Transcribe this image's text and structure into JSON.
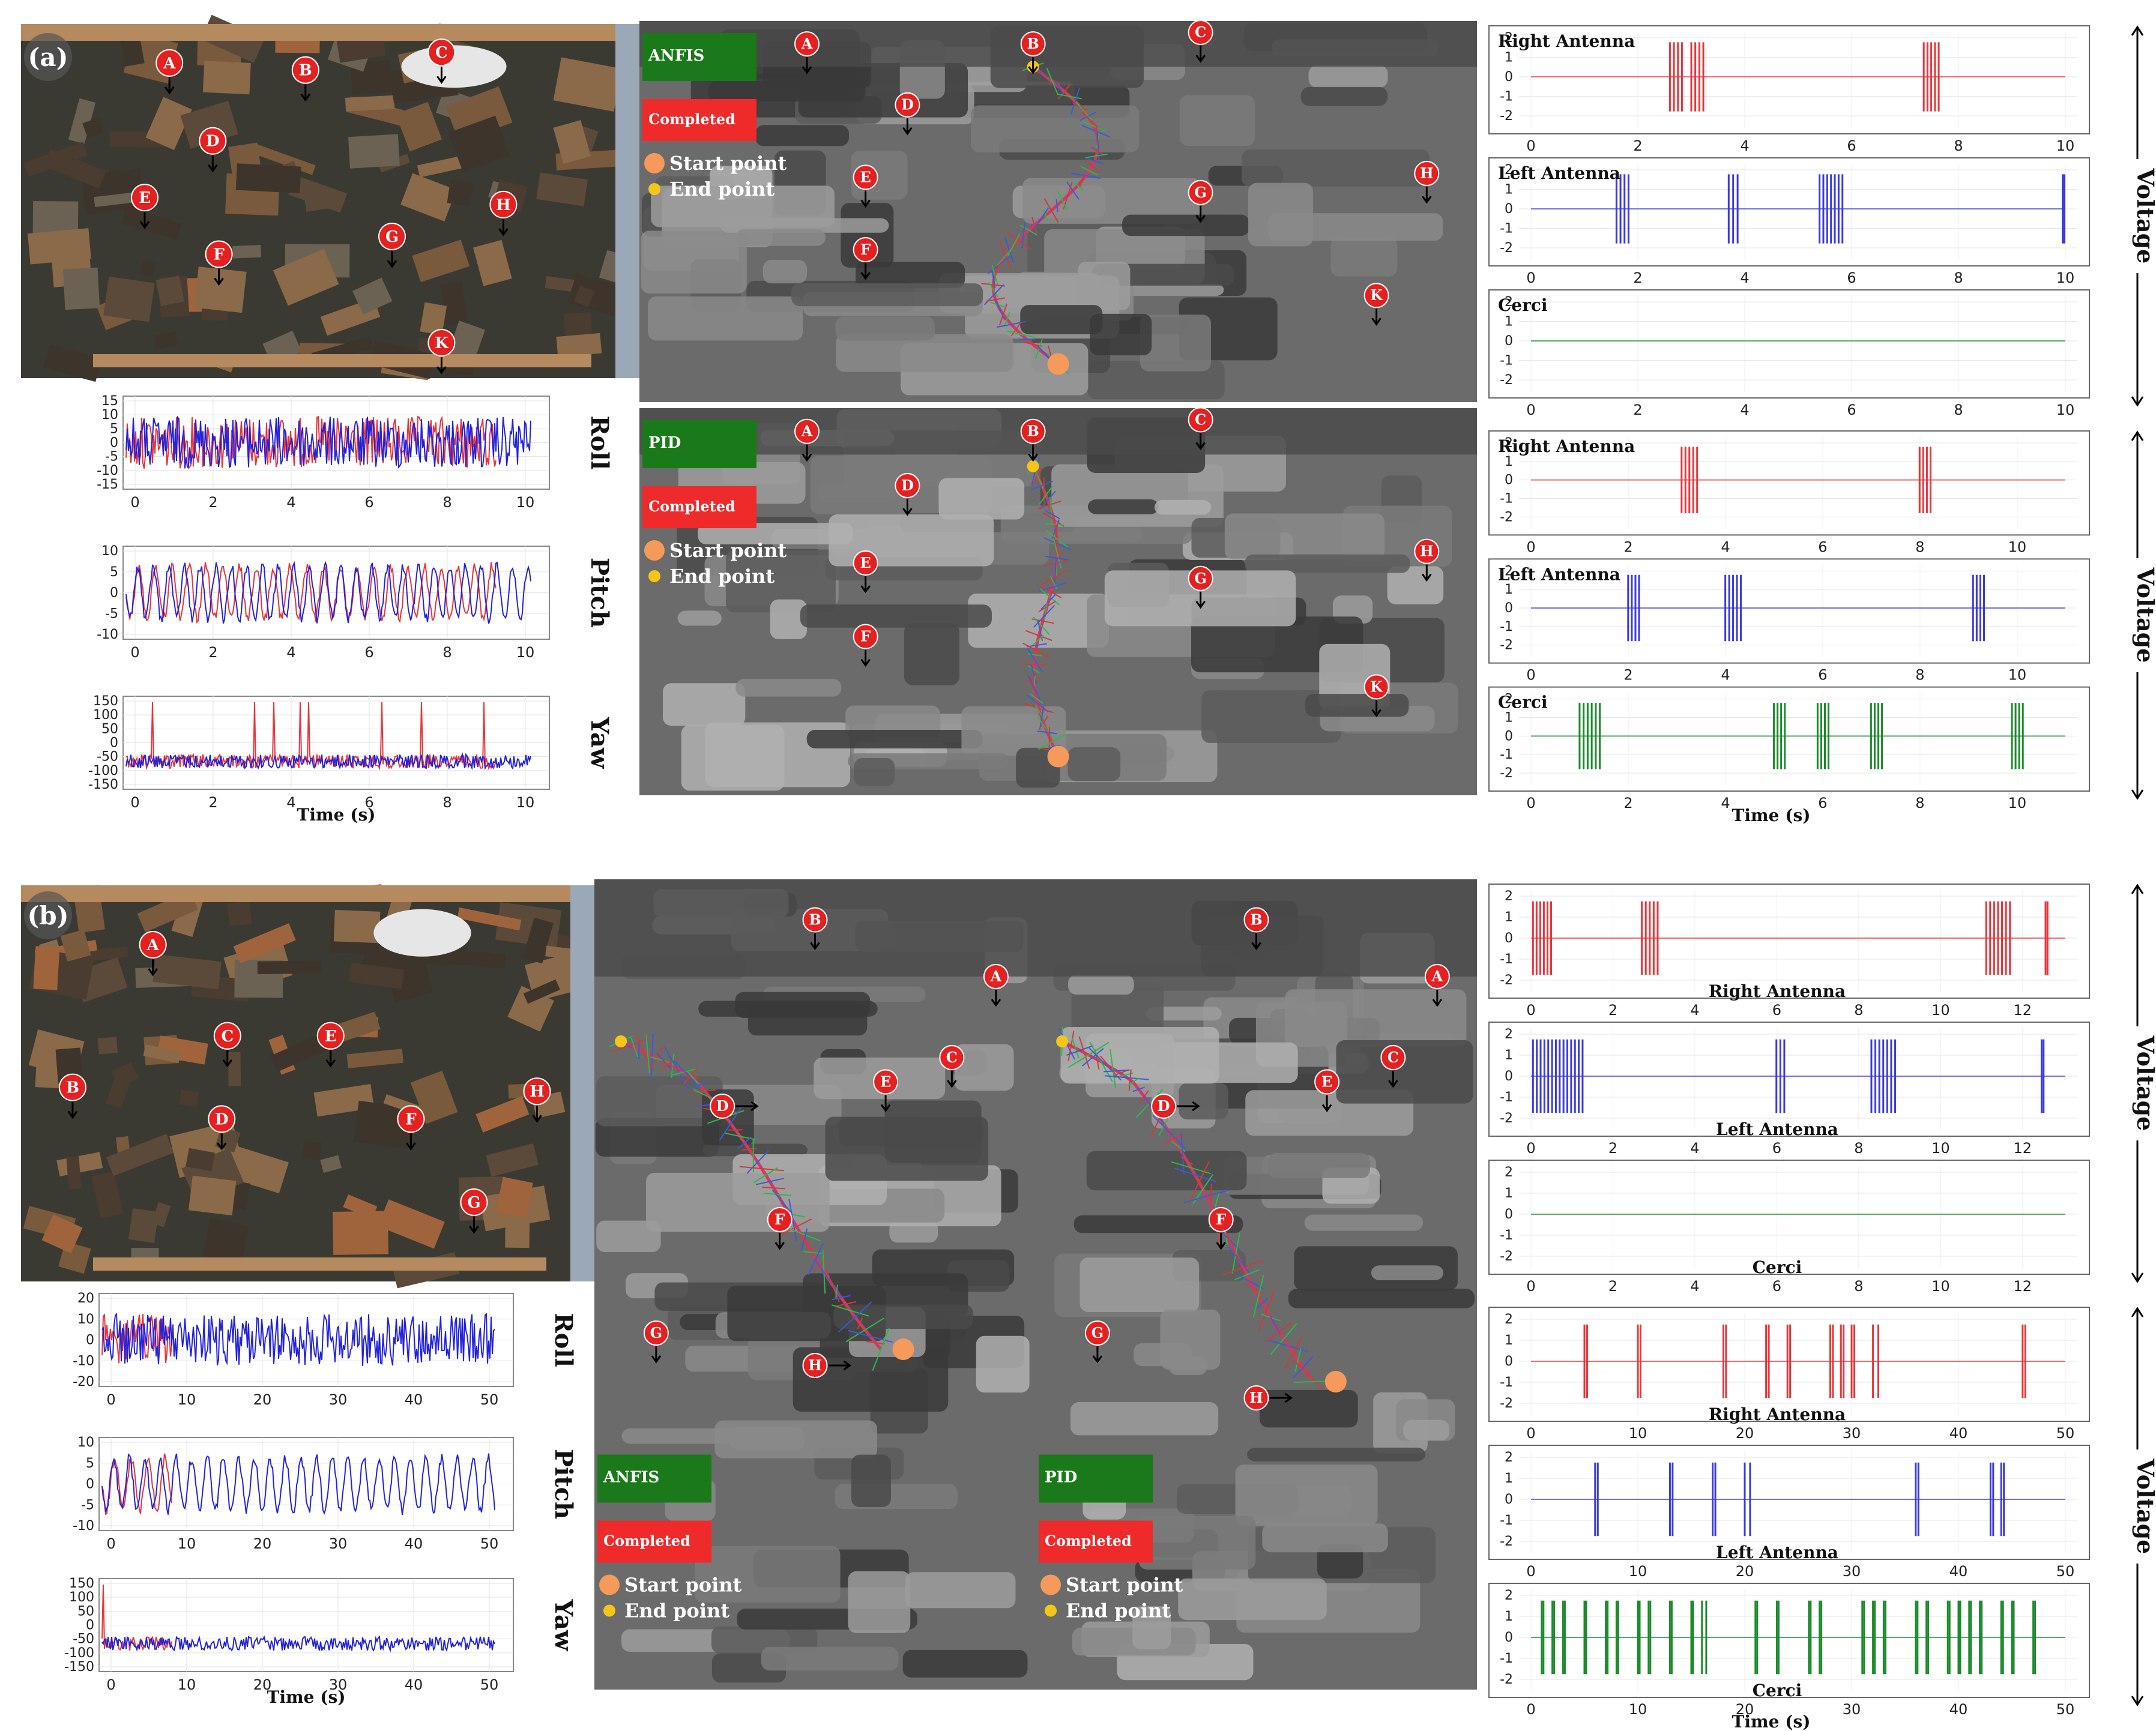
{
  "figure": {
    "panels": [
      {
        "id": "a",
        "label": "(a)",
        "arena_markers": [
          {
            "id": "A",
            "ax": 0.24,
            "ay": 0.11
          },
          {
            "id": "B",
            "ax": 0.46,
            "ay": 0.13
          },
          {
            "id": "C",
            "ax": 0.68,
            "ay": 0.08
          },
          {
            "id": "D",
            "ax": 0.31,
            "ay": 0.33
          },
          {
            "id": "E",
            "ax": 0.2,
            "ay": 0.49
          },
          {
            "id": "F",
            "ax": 0.32,
            "ay": 0.65
          },
          {
            "id": "G",
            "ax": 0.6,
            "ay": 0.6
          },
          {
            "id": "H",
            "ax": 0.78,
            "ay": 0.51
          },
          {
            "id": "K",
            "ax": 0.68,
            "ay": 0.9
          }
        ],
        "imu": {
          "xticks": [
            "0",
            "2",
            "4",
            "6",
            "8",
            "10"
          ],
          "plots": [
            {
              "name": "Roll",
              "yticks": [
                "15",
                "10",
                "5",
                "0",
                "-5",
                "-10",
                "-15"
              ]
            },
            {
              "name": "Pitch",
              "yticks": [
                "10",
                "5",
                "0",
                "-5",
                "-10"
              ]
            },
            {
              "name": "Yaw",
              "yticks": [
                "150",
                "100",
                "50",
                "0",
                "-50",
                "-100",
                "-150"
              ]
            }
          ],
          "xlabel": "Time (s)"
        },
        "sims": [
          {
            "controller": "ANFIS",
            "status": "Completed",
            "legend_start": "Start point",
            "legend_end": "End point",
            "markers": [
              {
                "id": "A",
                "mx": 0.2,
                "my": 0.06
              },
              {
                "id": "B",
                "mx": 0.47,
                "my": 0.06
              },
              {
                "id": "C",
                "mx": 0.67,
                "my": 0.03
              },
              {
                "id": "D",
                "mx": 0.32,
                "my": 0.22
              },
              {
                "id": "E",
                "mx": 0.27,
                "my": 0.41
              },
              {
                "id": "G",
                "mx": 0.67,
                "my": 0.45
              },
              {
                "id": "H",
                "mx": 0.94,
                "my": 0.4
              },
              {
                "id": "F",
                "mx": 0.27,
                "my": 0.6
              },
              {
                "id": "K",
                "mx": 0.88,
                "my": 0.72
              }
            ]
          },
          {
            "controller": "PID",
            "status": "Completed",
            "legend_start": "Start point",
            "legend_end": "End point",
            "markers": [
              {
                "id": "A",
                "mx": 0.2,
                "my": 0.06
              },
              {
                "id": "B",
                "mx": 0.47,
                "my": 0.06
              },
              {
                "id": "C",
                "mx": 0.67,
                "my": 0.03
              },
              {
                "id": "D",
                "mx": 0.32,
                "my": 0.2
              },
              {
                "id": "E",
                "mx": 0.27,
                "my": 0.4
              },
              {
                "id": "G",
                "mx": 0.67,
                "my": 0.44
              },
              {
                "id": "H",
                "mx": 0.94,
                "my": 0.37
              },
              {
                "id": "F",
                "mx": 0.27,
                "my": 0.59
              },
              {
                "id": "K",
                "mx": 0.88,
                "my": 0.72
              }
            ]
          }
        ],
        "voltage_groups": [
          {
            "axis_label": "Voltage",
            "xticks": [
              "0",
              "2",
              "4",
              "6",
              "8",
              "10"
            ],
            "xmax": 10,
            "plots": [
              {
                "name": "Right Antenna",
                "color": "#e8343a",
                "bursts": [
                  [
                    2.6,
                    2.9
                  ],
                  [
                    3.0,
                    3.3
                  ],
                  [
                    7.35,
                    7.7
                  ]
                ]
              },
              {
                "name": "Left Antenna",
                "color": "#3a3adf",
                "bursts": [
                  [
                    1.6,
                    1.9
                  ],
                  [
                    3.7,
                    3.95
                  ],
                  [
                    5.4,
                    5.9
                  ],
                  [
                    9.95,
                    10.0
                  ]
                ]
              },
              {
                "name": "Cerci",
                "color": "#1b8a2b",
                "bursts": []
              }
            ]
          },
          {
            "axis_label": "Voltage",
            "xticks": [
              "0",
              "2",
              "4",
              "6",
              "8",
              "10"
            ],
            "xmax": 11,
            "xlabel": "Time (s)",
            "plots": [
              {
                "name": "Right Antenna",
                "color": "#e8343a",
                "bursts": [
                  [
                    3.1,
                    3.5
                  ],
                  [
                    8.0,
                    8.3
                  ]
                ]
              },
              {
                "name": "Left Antenna",
                "color": "#3a3adf",
                "bursts": [
                  [
                    2.0,
                    2.3
                  ],
                  [
                    4.0,
                    4.4
                  ],
                  [
                    9.1,
                    9.4
                  ]
                ]
              },
              {
                "name": "Cerci",
                "color": "#1b8a2b",
                "bursts": [
                  [
                    1.0,
                    1.5
                  ],
                  [
                    5.0,
                    5.3
                  ],
                  [
                    5.9,
                    6.2
                  ],
                  [
                    7.0,
                    7.3
                  ],
                  [
                    9.9,
                    10.2
                  ]
                ]
              }
            ]
          }
        ]
      },
      {
        "id": "b",
        "label": "(b)",
        "arena_markers": [
          {
            "id": "A",
            "ax": 0.23,
            "ay": 0.15
          },
          {
            "id": "B",
            "ax": 0.09,
            "ay": 0.51
          },
          {
            "id": "C",
            "ax": 0.36,
            "ay": 0.38
          },
          {
            "id": "E",
            "ax": 0.54,
            "ay": 0.38
          },
          {
            "id": "D",
            "ax": 0.35,
            "ay": 0.59
          },
          {
            "id": "F",
            "ax": 0.68,
            "ay": 0.59
          },
          {
            "id": "H",
            "ax": 0.9,
            "ay": 0.52
          },
          {
            "id": "G",
            "ax": 0.79,
            "ay": 0.8
          }
        ],
        "imu": {
          "xticks": [
            "0",
            "10",
            "20",
            "30",
            "40",
            "50"
          ],
          "plots": [
            {
              "name": "Roll",
              "yticks": [
                "20",
                "10",
                "0",
                "-10",
                "-20"
              ]
            },
            {
              "name": "Pitch",
              "yticks": [
                "10",
                "5",
                "0",
                "-5",
                "-10"
              ]
            },
            {
              "name": "Yaw",
              "yticks": [
                "150",
                "100",
                "50",
                "0",
                "-50",
                "-100",
                "-150"
              ]
            }
          ],
          "xlabel": "Time (s)"
        },
        "sims": [
          {
            "controller": "ANFIS",
            "status": "Completed",
            "legend_start": "Start point",
            "legend_end": "End point",
            "markers": [
              {
                "id": "B",
                "mx": 0.5,
                "my": 0.05
              },
              {
                "id": "A",
                "mx": 0.91,
                "my": 0.12
              },
              {
                "id": "D",
                "mx": 0.29,
                "my": 0.28
              },
              {
                "id": "E",
                "mx": 0.66,
                "my": 0.25
              },
              {
                "id": "C",
                "mx": 0.81,
                "my": 0.22
              },
              {
                "id": "F",
                "mx": 0.42,
                "my": 0.42
              },
              {
                "id": "G",
                "mx": 0.14,
                "my": 0.56
              },
              {
                "id": "H",
                "mx": 0.5,
                "my": 0.6
              }
            ]
          },
          {
            "controller": "PID",
            "status": "Completed",
            "legend_start": "Start point",
            "legend_end": "End point",
            "markers": [
              {
                "id": "B",
                "mx": 0.5,
                "my": 0.05
              },
              {
                "id": "A",
                "mx": 0.91,
                "my": 0.12
              },
              {
                "id": "D",
                "mx": 0.29,
                "my": 0.28
              },
              {
                "id": "E",
                "mx": 0.66,
                "my": 0.25
              },
              {
                "id": "C",
                "mx": 0.81,
                "my": 0.22
              },
              {
                "id": "F",
                "mx": 0.42,
                "my": 0.42
              },
              {
                "id": "G",
                "mx": 0.14,
                "my": 0.56
              },
              {
                "id": "H",
                "mx": 0.5,
                "my": 0.64
              }
            ]
          }
        ],
        "voltage_groups": [
          {
            "axis_label": "Voltage",
            "xticks": [
              "0",
              "2",
              "4",
              "6",
              "8",
              "10",
              "12"
            ],
            "xmax": 13.5,
            "plots": [
              {
                "name": "Right Antenna",
                "color": "#e8343a",
                "bursts": [
                  [
                    0.05,
                    0.6
                  ],
                  [
                    2.8,
                    3.3
                  ],
                  [
                    11.5,
                    12.2
                  ],
                  [
                    13.0,
                    13.1
                  ]
                ]
              },
              {
                "name": "Left Antenna",
                "color": "#3a3adf",
                "bursts": [
                  [
                    0.05,
                    1.4
                  ],
                  [
                    6.2,
                    6.5
                  ],
                  [
                    8.6,
                    9.3
                  ],
                  [
                    12.9,
                    13.0
                  ]
                ]
              },
              {
                "name": "Cerci",
                "color": "#1b8a2b",
                "bursts": []
              }
            ]
          },
          {
            "axis_label": "Voltage",
            "xticks": [
              "0",
              "10",
              "20",
              "30",
              "40",
              "50"
            ],
            "xmax": 50,
            "xlabel": "Time (s)",
            "plots": [
              {
                "name": "Right Antenna",
                "color": "#e8343a",
                "bursts": [
                  [
                    5,
                    5.5
                  ],
                  [
                    10,
                    10.5
                  ],
                  [
                    18,
                    18.5
                  ],
                  [
                    22,
                    22.5
                  ],
                  [
                    24,
                    24.5
                  ],
                  [
                    28,
                    28.5
                  ],
                  [
                    29,
                    29.5
                  ],
                  [
                    30,
                    30.5
                  ],
                  [
                    32,
                    33
                  ],
                  [
                    46,
                    46.5
                  ]
                ]
              },
              {
                "name": "Left Antenna",
                "color": "#3a3adf",
                "bursts": [
                  [
                    6,
                    6.5
                  ],
                  [
                    13,
                    13.5
                  ],
                  [
                    17,
                    17.5
                  ],
                  [
                    20,
                    21
                  ],
                  [
                    36,
                    36.5
                  ],
                  [
                    43,
                    43.5
                  ],
                  [
                    44,
                    44.5
                  ]
                ]
              },
              {
                "name": "Cerci",
                "color": "#1b8a2b",
                "bursts": [
                  [
                    1,
                    1.3
                  ],
                  [
                    2,
                    2.3
                  ],
                  [
                    3,
                    3.3
                  ],
                  [
                    5,
                    5.3
                  ],
                  [
                    7,
                    7.3
                  ],
                  [
                    8,
                    8.3
                  ],
                  [
                    10,
                    10.3
                  ],
                  [
                    11,
                    11.3
                  ],
                  [
                    13,
                    13.3
                  ],
                  [
                    15,
                    15.3
                  ],
                  [
                    16,
                    16.8
                  ],
                  [
                    21,
                    21.3
                  ],
                  [
                    23,
                    23.3
                  ],
                  [
                    26,
                    26.3
                  ],
                  [
                    27,
                    27.3
                  ],
                  [
                    31,
                    31.3
                  ],
                  [
                    32,
                    32.3
                  ],
                  [
                    33,
                    33.3
                  ],
                  [
                    36,
                    36.3
                  ],
                  [
                    37,
                    37.3
                  ],
                  [
                    39,
                    39.3
                  ],
                  [
                    40,
                    40.3
                  ],
                  [
                    41,
                    41.3
                  ],
                  [
                    42,
                    42.3
                  ],
                  [
                    44,
                    44.3
                  ],
                  [
                    45,
                    45.3
                  ],
                  [
                    47,
                    47.3
                  ]
                ]
              }
            ]
          }
        ]
      }
    ]
  }
}
